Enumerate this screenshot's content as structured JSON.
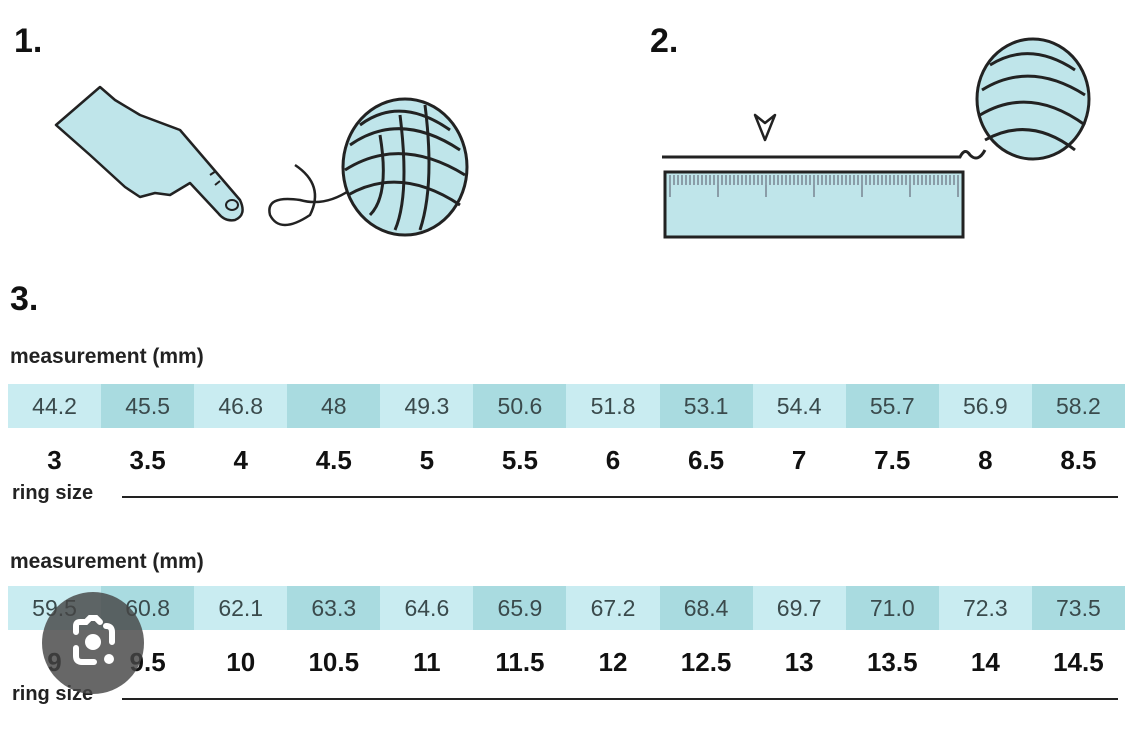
{
  "steps": [
    {
      "number": "1."
    },
    {
      "number": "2."
    },
    {
      "number": "3."
    }
  ],
  "colors": {
    "cell_light": "#c9ecf1",
    "cell_dark": "#a9dbe0",
    "illustration_fill": "#bfe5ea"
  },
  "tables": [
    {
      "measurement_label": "measurement (mm)",
      "measurements": [
        "44.2",
        "45.5",
        "46.8",
        "48",
        "49.3",
        "50.6",
        "51.8",
        "53.1",
        "54.4",
        "55.7",
        "56.9",
        "58.2"
      ],
      "ring_sizes": [
        "3",
        "3.5",
        "4",
        "4.5",
        "5",
        "5.5",
        "6",
        "6.5",
        "7",
        "7.5",
        "8",
        "8.5"
      ],
      "ring_size_label": "ring size"
    },
    {
      "measurement_label": "measurement (mm)",
      "measurements": [
        "59.5",
        "60.8",
        "62.1",
        "63.3",
        "64.6",
        "65.9",
        "67.2",
        "68.4",
        "69.7",
        "71.0",
        "72.3",
        "73.5"
      ],
      "ring_sizes": [
        "9",
        "9.5",
        "10",
        "10.5",
        "11",
        "11.5",
        "12",
        "12.5",
        "13",
        "13.5",
        "14",
        "14.5"
      ],
      "ring_size_label": "ring size"
    }
  ],
  "overlay": {
    "icon": "lens-camera-icon"
  }
}
